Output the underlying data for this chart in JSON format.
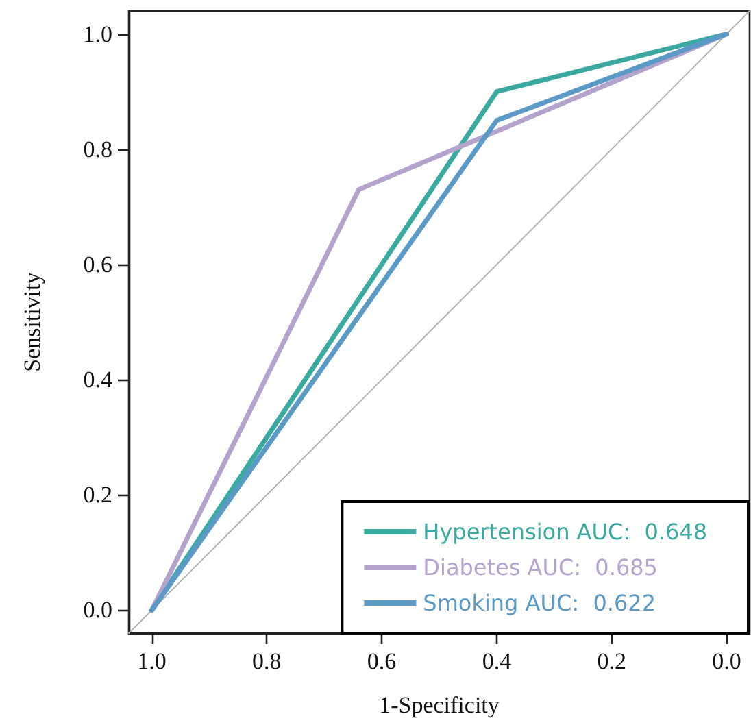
{
  "chart_data": {
    "type": "line",
    "xlabel": "1-Specificity",
    "ylabel": "Sensitivity",
    "xlim": [
      1.04,
      -0.04
    ],
    "xticks": [
      {
        "value": 1,
        "label": "1.0"
      },
      0.8,
      0.6,
      0.4,
      0.2,
      {
        "value": 0,
        "label": "0.0"
      }
    ],
    "ylim": [
      -0.04,
      1.04
    ],
    "yticks": [
      {
        "value": 0,
        "label": "0.0"
      },
      0.2,
      0.4,
      0.6,
      0.8,
      {
        "value": 1,
        "label": "1.0"
      }
    ],
    "grid": false,
    "legend": "bottom right",
    "marker": "none",
    "line_style": "solid",
    "series": [
      {
        "x": [
          1.04,
          -0.04
        ],
        "values": [
          -0.04,
          1.04
        ],
        "color": "#b4b4b4"
      },
      {
        "name": "Hypertension AUC:  0.648",
        "color": "#3aa99f",
        "x": [
          1,
          0.4,
          0
        ],
        "values": [
          0,
          0.9,
          1
        ]
      },
      {
        "name": "Diabetes AUC:  0.685",
        "color": "#b4a4cd",
        "x": [
          1,
          0.64,
          0
        ],
        "values": [
          0,
          0.73,
          1
        ]
      },
      {
        "name": "Smoking AUC:  0.622",
        "color": "#5b9ac6",
        "x": [
          1,
          0.4,
          0
        ],
        "values": [
          0,
          0.85,
          1
        ]
      }
    ]
  }
}
